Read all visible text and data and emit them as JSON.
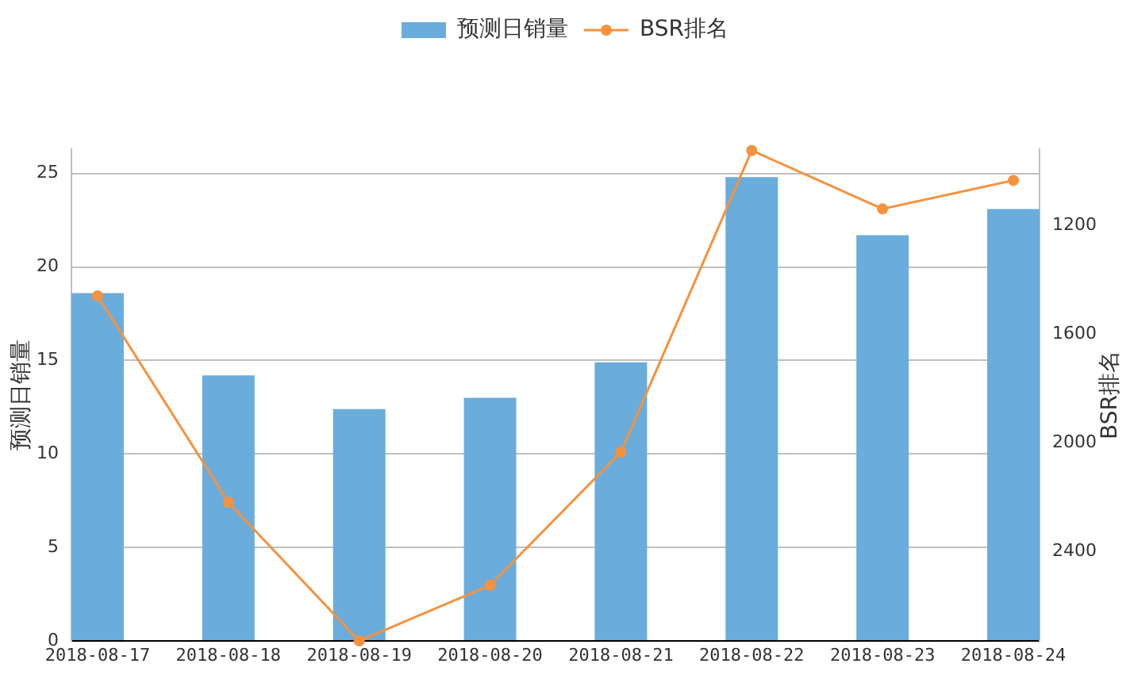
{
  "chart_data": {
    "type": "bar",
    "categories": [
      "2018-08-17",
      "2018-08-18",
      "2018-08-19",
      "2018-08-20",
      "2018-08-21",
      "2018-08-22",
      "2018-08-23",
      "2018-08-24"
    ],
    "series": [
      {
        "name": "预测日销量",
        "color": "#6aacdc",
        "values": [
          18.6,
          14.2,
          12.4,
          13.0,
          14.9,
          24.8,
          21.7,
          23.1
        ]
      },
      {
        "name": "BSR排名",
        "type": "line",
        "axis": "y2",
        "color": "#f5923e",
        "values": [
          1460,
          2220,
          2730,
          2525,
          2035,
          925,
          1140,
          1035
        ]
      }
    ],
    "ylabel": "预测日销量",
    "y2label": "BSR排名",
    "ylim": [
      0,
      26.3
    ],
    "yticks": [
      0,
      5,
      10,
      15,
      20,
      25
    ],
    "y2lim": [
      2730,
      920
    ],
    "y2ticks": [
      1200,
      1600,
      2000,
      2400
    ],
    "grid": "y",
    "legend": "top",
    "marker": "circle"
  }
}
